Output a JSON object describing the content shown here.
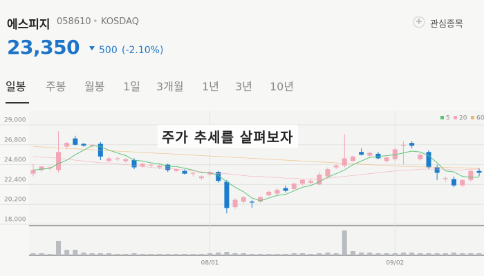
{
  "header": {
    "name": "에스피지",
    "code": "058610",
    "separator": "•",
    "market": "KOSDAQ",
    "price": "23,350",
    "change": "500",
    "change_percent": "(-2.10%)",
    "watchlist": "관심종목"
  },
  "tabs": [
    "일봉",
    "주봉",
    "월봉",
    "1일",
    "3개월",
    "1년",
    "3년",
    "10년"
  ],
  "caption": "주가 추세를 살펴보자",
  "chart_data": {
    "type": "candlestick",
    "categories": [
      null,
      null,
      null,
      null,
      null,
      null,
      null,
      null,
      null,
      null,
      null,
      null,
      null,
      null,
      null,
      null,
      null,
      null,
      null,
      null,
      null,
      "08/01",
      null,
      null,
      null,
      null,
      null,
      null,
      null,
      null,
      null,
      null,
      null,
      null,
      null,
      null,
      null,
      null,
      null,
      null,
      null,
      null,
      null,
      "09/02",
      null,
      null,
      null,
      null,
      null,
      null,
      null,
      null,
      null,
      null
    ],
    "open": [
      23600,
      24000,
      24200,
      24000,
      26600,
      27500,
      26900,
      26700,
      26900,
      25000,
      25200,
      25000,
      25100,
      24400,
      24500,
      24300,
      24600,
      23900,
      23900,
      23600,
      23100,
      23500,
      23800,
      22700,
      19900,
      20500,
      20500,
      20500,
      21200,
      21400,
      22000,
      21900,
      22500,
      22600,
      22400,
      23300,
      24300,
      24500,
      25000,
      26000,
      25600,
      25800,
      25000,
      25200,
      26700,
      27000,
      25200,
      26000,
      24300,
      23000,
      23000,
      22300,
      22900,
      23900
    ],
    "high": [
      24700,
      24400,
      24500,
      28300,
      27100,
      27800,
      27000,
      26900,
      27100,
      25500,
      25500,
      25300,
      25300,
      24800,
      24700,
      24700,
      24700,
      24200,
      24100,
      23800,
      23400,
      23900,
      23900,
      22900,
      20900,
      21100,
      20700,
      21100,
      21700,
      22000,
      22300,
      22600,
      23000,
      23100,
      23800,
      24300,
      24700,
      28000,
      25600,
      26400,
      26000,
      26000,
      25500,
      26500,
      27200,
      27200,
      25900,
      26200,
      24600,
      23300,
      23300,
      23000,
      24000,
      24200
    ],
    "low": [
      23300,
      23800,
      23900,
      23700,
      26300,
      26700,
      26600,
      26500,
      25100,
      24900,
      25000,
      24800,
      24100,
      24200,
      24300,
      24100,
      23800,
      23700,
      23500,
      23300,
      22900,
      23300,
      22600,
      19200,
      19700,
      20300,
      19800,
      20400,
      21100,
      21100,
      21500,
      21800,
      22300,
      22400,
      22300,
      23100,
      24100,
      24300,
      24900,
      25600,
      25500,
      25200,
      24800,
      25000,
      24600,
      26400,
      25000,
      24100,
      22900,
      22700,
      22100,
      22100,
      22700,
      23300
    ],
    "close": [
      24000,
      24400,
      24300,
      26000,
      27000,
      26800,
      26700,
      26800,
      25500,
      25300,
      25300,
      25200,
      24300,
      24700,
      24600,
      24500,
      24000,
      24100,
      23600,
      23700,
      23300,
      23800,
      22800,
      19800,
      20700,
      21000,
      20400,
      21000,
      21600,
      21800,
      21700,
      22500,
      22900,
      22800,
      23500,
      24100,
      24500,
      25300,
      25500,
      25700,
      25900,
      25300,
      25400,
      26300,
      26800,
      26700,
      25700,
      24300,
      23700,
      23100,
      22300,
      22900,
      23900,
      23700
    ],
    "volumes": [
      3,
      3,
      2,
      21,
      8,
      8,
      4,
      3,
      3,
      3,
      2,
      2,
      3,
      2,
      2,
      2,
      2,
      2,
      2,
      2,
      2,
      3,
      4,
      5,
      3,
      3,
      2,
      2,
      2,
      2,
      2,
      3,
      3,
      2,
      3,
      4,
      3,
      36,
      6,
      4,
      4,
      3,
      3,
      3,
      4,
      4,
      3,
      3,
      3,
      3,
      4,
      3,
      3,
      3
    ],
    "series": [
      {
        "name": "5",
        "color": "#5cc37a",
        "values": [
          24000,
          24100,
          24200,
          24700,
          25100,
          25700,
          26200,
          26700,
          26600,
          26200,
          25900,
          25600,
          25100,
          25000,
          24800,
          24700,
          24400,
          24400,
          24200,
          24000,
          23700,
          23700,
          23400,
          22700,
          22100,
          21600,
          20900,
          20600,
          20900,
          21200,
          21300,
          21700,
          22100,
          22300,
          22700,
          23200,
          23600,
          24000,
          24600,
          25000,
          25400,
          25500,
          25600,
          25700,
          25900,
          26100,
          26000,
          25600,
          24800,
          23900,
          23800,
          23300,
          23200,
          23200
        ]
      },
      {
        "name": "20",
        "color": "#f2a6b5",
        "values": [
          25500,
          25400,
          25400,
          25300,
          25200,
          25100,
          25000,
          24900,
          24800,
          24800,
          24700,
          24600,
          24500,
          24400,
          24300,
          24200,
          24200,
          24100,
          24000,
          23900,
          23800,
          23700,
          23600,
          23600,
          23500,
          23400,
          23300,
          23300,
          23200,
          23200,
          23100,
          23100,
          23000,
          23000,
          23000,
          23100,
          23200,
          23300,
          23400,
          23500,
          23600,
          23700,
          23800,
          23900,
          24000,
          24000,
          24100,
          24100,
          24100,
          24100,
          24000,
          24000,
          24100,
          24100
        ]
      },
      {
        "name": "60",
        "color": "#f0b56e",
        "values": [
          26600,
          26550,
          26500,
          26450,
          26400,
          26350,
          26300,
          26250,
          26200,
          26150,
          26100,
          26050,
          26000,
          25950,
          25900,
          25850,
          25800,
          25750,
          25700,
          25650,
          25600,
          25550,
          25500,
          25450,
          25400,
          25350,
          25300,
          25250,
          25200,
          25150,
          25100,
          25050,
          25000,
          24950,
          24900,
          24850,
          24800,
          24750,
          24700,
          24650,
          24600,
          24550,
          24500,
          24450,
          24400,
          24400,
          24350,
          24350,
          24300,
          24300,
          24250,
          24250,
          24200,
          24200
        ]
      }
    ],
    "up_color": "#f1a7b6",
    "down_color": "#1c7ccd",
    "volume_color": "#b9bdc1",
    "ylim": [
      18000,
      29000
    ],
    "yticks": [
      {
        "value": 18000,
        "label": "18,000"
      },
      {
        "value": 20200,
        "label": "20,200"
      },
      {
        "value": 22400,
        "label": "22,400"
      },
      {
        "value": 24600,
        "label": "24,600"
      },
      {
        "value": 26800,
        "label": "26,800"
      },
      {
        "value": 29000,
        "label": "29,000"
      }
    ],
    "grid": true,
    "legend": "top-right"
  }
}
